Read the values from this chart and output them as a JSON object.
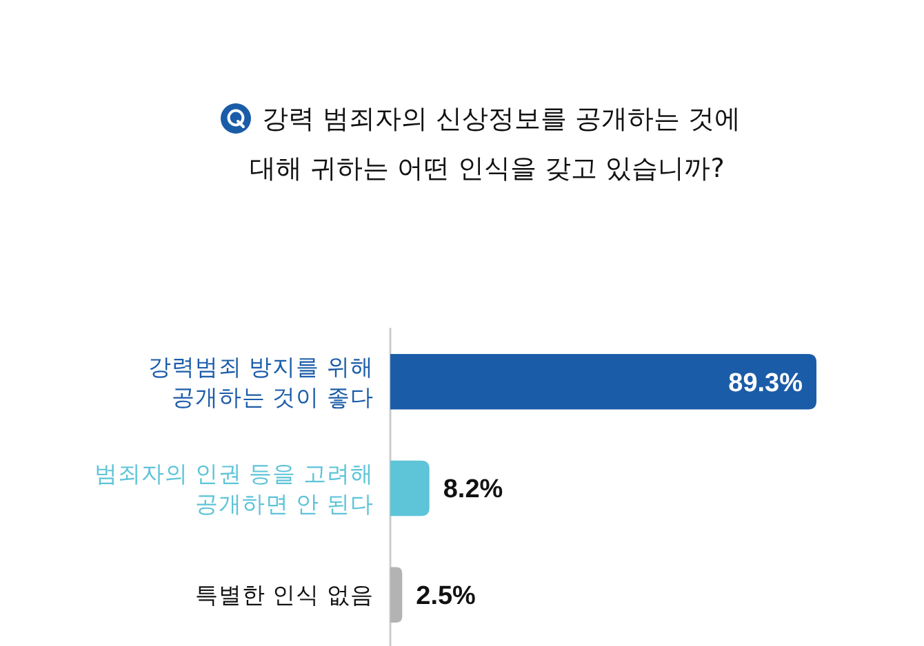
{
  "chart_data": {
    "type": "bar",
    "orientation": "horizontal",
    "title": "강력 범죄자의 신상정보를 공개하는 것에\n대해 귀하는 어떤 인식을 갖고 있습니까?",
    "categories": [
      "강력범죄 방지를 위해\n공개하는 것이 좋다",
      "범죄자의 인권 등을 고려해\n공개하면 안 된다",
      "특별한 인식 없음"
    ],
    "values": [
      89.3,
      8.2,
      2.5
    ],
    "colors": [
      "#1b5ca8",
      "#5ec4d8",
      "#b3b3b3"
    ],
    "value_labels": [
      "89.3%",
      "8.2%",
      "2.5%"
    ]
  }
}
